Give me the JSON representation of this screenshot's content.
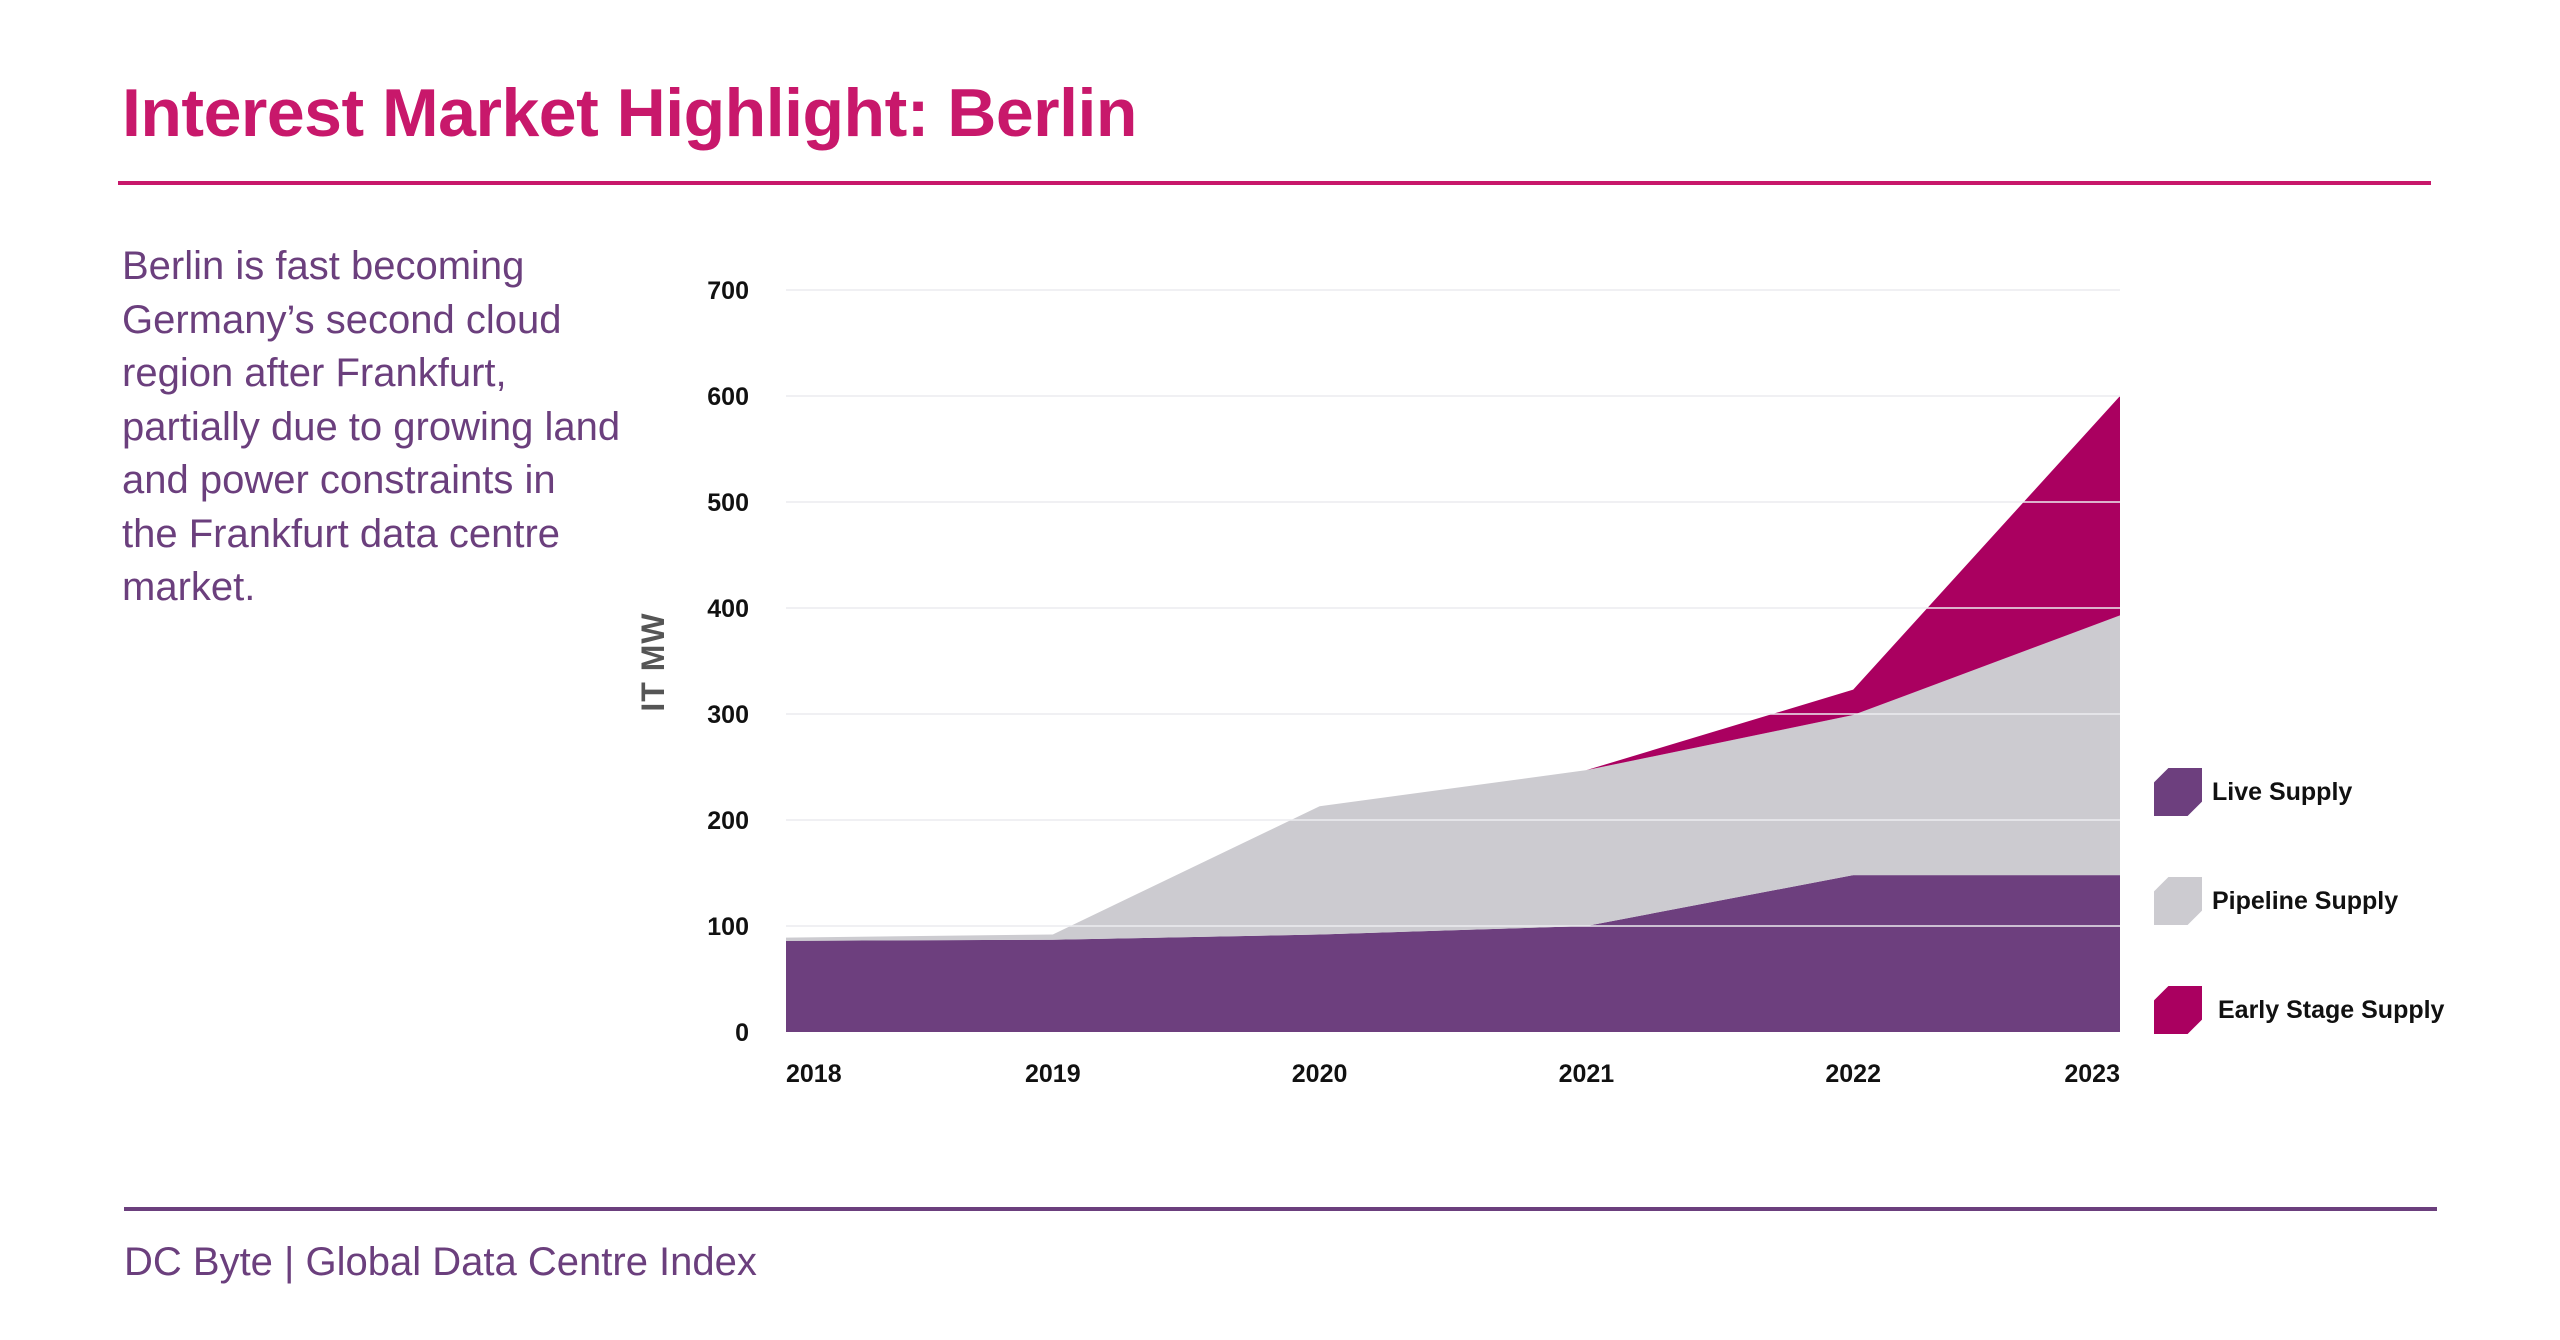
{
  "header": {
    "title": "Interest Market Highlight: Berlin"
  },
  "intro_text": "Berlin is fast becoming Germany’s second cloud region after Frankfurt, partially due to growing land and power constraints in the Frankfurt data centre market.",
  "footer": {
    "text": "DC Byte | Global Data Centre Index"
  },
  "colors": {
    "title_accent": "#c8186b",
    "brand_purple": "#6b3f7d",
    "live_supply": "#6d3f7e",
    "pipeline_supply": "#cccbd0",
    "early_stage_supply": "#aa0060"
  },
  "chart_data": {
    "type": "area",
    "stacked": true,
    "title": "",
    "xlabel": "",
    "ylabel": "IT MW",
    "categories": [
      "2018",
      "2019",
      "2020",
      "2021",
      "2022",
      "2023"
    ],
    "ylim": [
      0,
      700
    ],
    "yticks": [
      0,
      100,
      200,
      300,
      400,
      500,
      600,
      700
    ],
    "grid": true,
    "legend_position": "right",
    "series": [
      {
        "name": "Live Supply",
        "color": "#6d3f7e",
        "values": [
          86,
          87,
          92,
          100,
          148,
          148
        ]
      },
      {
        "name": "Pipeline Supply",
        "color": "#cccbd0",
        "values": [
          3,
          5,
          121,
          147,
          151,
          245
        ]
      },
      {
        "name": "Early Stage Supply",
        "color": "#aa0060",
        "values": [
          0,
          0,
          0,
          0,
          24,
          207
        ]
      }
    ]
  }
}
